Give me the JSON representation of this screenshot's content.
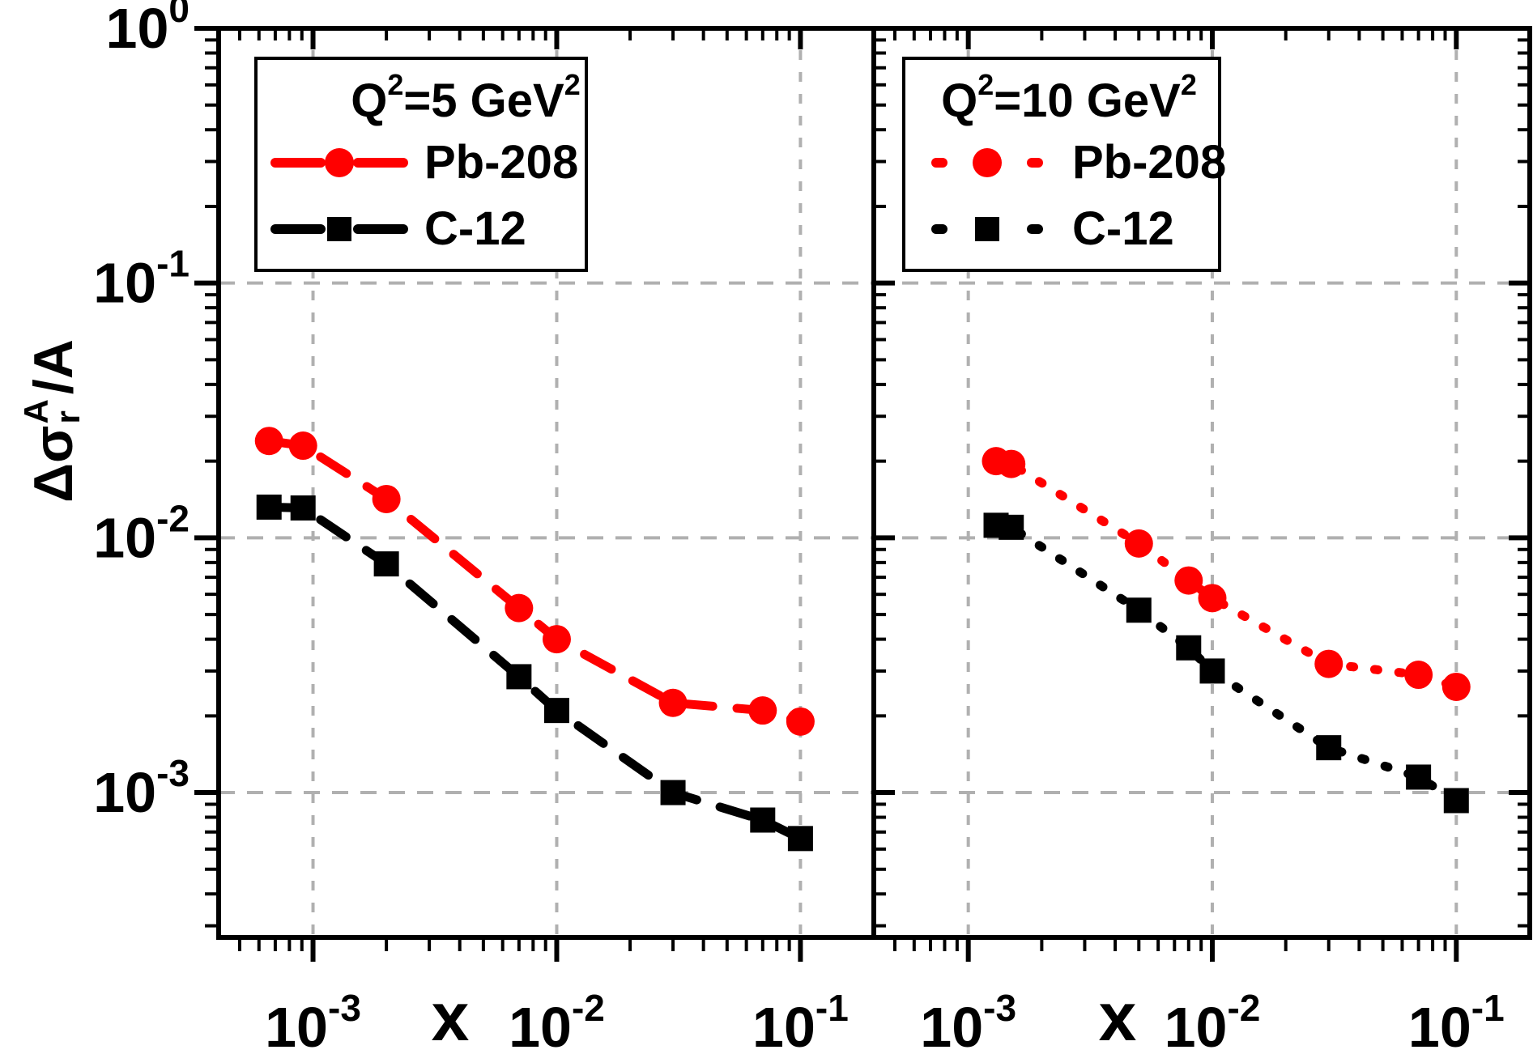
{
  "figure": {
    "background": "#ffffff",
    "axis_color": "#000000",
    "grid_color": "#b0b0b0",
    "accent_red": "#ff0000"
  },
  "y_axis": {
    "label_prefix": "Δσ",
    "label_sup": "A",
    "label_sub": "r",
    "label_suffix": "/A",
    "tick_exponents": [
      0,
      -1,
      -2,
      -3
    ]
  },
  "x_axis": {
    "label": "x",
    "tick_exponents": [
      -3,
      -2,
      -1
    ]
  },
  "chart_data": [
    {
      "type": "scatter-line",
      "panel": "left",
      "title": "Q²=5 GeV²",
      "line_style": "dashed",
      "grid": "dashed",
      "legend_position": "top-left",
      "xlim": [
        0.00041,
        0.2
      ],
      "ylim": [
        0.00027,
        1.0
      ],
      "x_gridlines": [
        0.001,
        0.01,
        0.1
      ],
      "y_gridlines": [
        0.1,
        0.01,
        0.001
      ],
      "series": [
        {
          "name": "Pb-208",
          "color": "#ff0000",
          "marker": "circle",
          "x": [
            0.00066,
            0.00091,
            0.002,
            0.007,
            0.01,
            0.03,
            0.07,
            0.1
          ],
          "y": [
            0.024,
            0.023,
            0.0142,
            0.0053,
            0.004,
            0.00225,
            0.0021,
            0.0019
          ]
        },
        {
          "name": "C-12",
          "color": "#000000",
          "marker": "square",
          "x": [
            0.00066,
            0.00091,
            0.002,
            0.007,
            0.01,
            0.03,
            0.07,
            0.1
          ],
          "y": [
            0.0132,
            0.0131,
            0.0079,
            0.00285,
            0.0021,
            0.001,
            0.00078,
            0.00066
          ]
        }
      ]
    },
    {
      "type": "scatter-line",
      "panel": "right",
      "title": "Q²=10 GeV²",
      "line_style": "dotted",
      "grid": "dashed",
      "legend_position": "top-left",
      "xlim": [
        0.00041,
        0.2
      ],
      "ylim": [
        0.00027,
        1.0
      ],
      "x_gridlines": [
        0.001,
        0.01,
        0.1
      ],
      "y_gridlines": [
        0.1,
        0.01,
        0.001
      ],
      "series": [
        {
          "name": "Pb-208",
          "color": "#ff0000",
          "marker": "circle",
          "x": [
            0.0013,
            0.0015,
            0.005,
            0.008,
            0.01,
            0.03,
            0.07,
            0.1
          ],
          "y": [
            0.02,
            0.0195,
            0.0095,
            0.0068,
            0.0058,
            0.0032,
            0.0029,
            0.0026
          ]
        },
        {
          "name": "C-12",
          "color": "#000000",
          "marker": "square",
          "x": [
            0.0013,
            0.0015,
            0.005,
            0.008,
            0.01,
            0.03,
            0.07,
            0.1
          ],
          "y": [
            0.0112,
            0.011,
            0.0052,
            0.0037,
            0.003,
            0.0015,
            0.00115,
            0.00093
          ]
        }
      ]
    }
  ]
}
